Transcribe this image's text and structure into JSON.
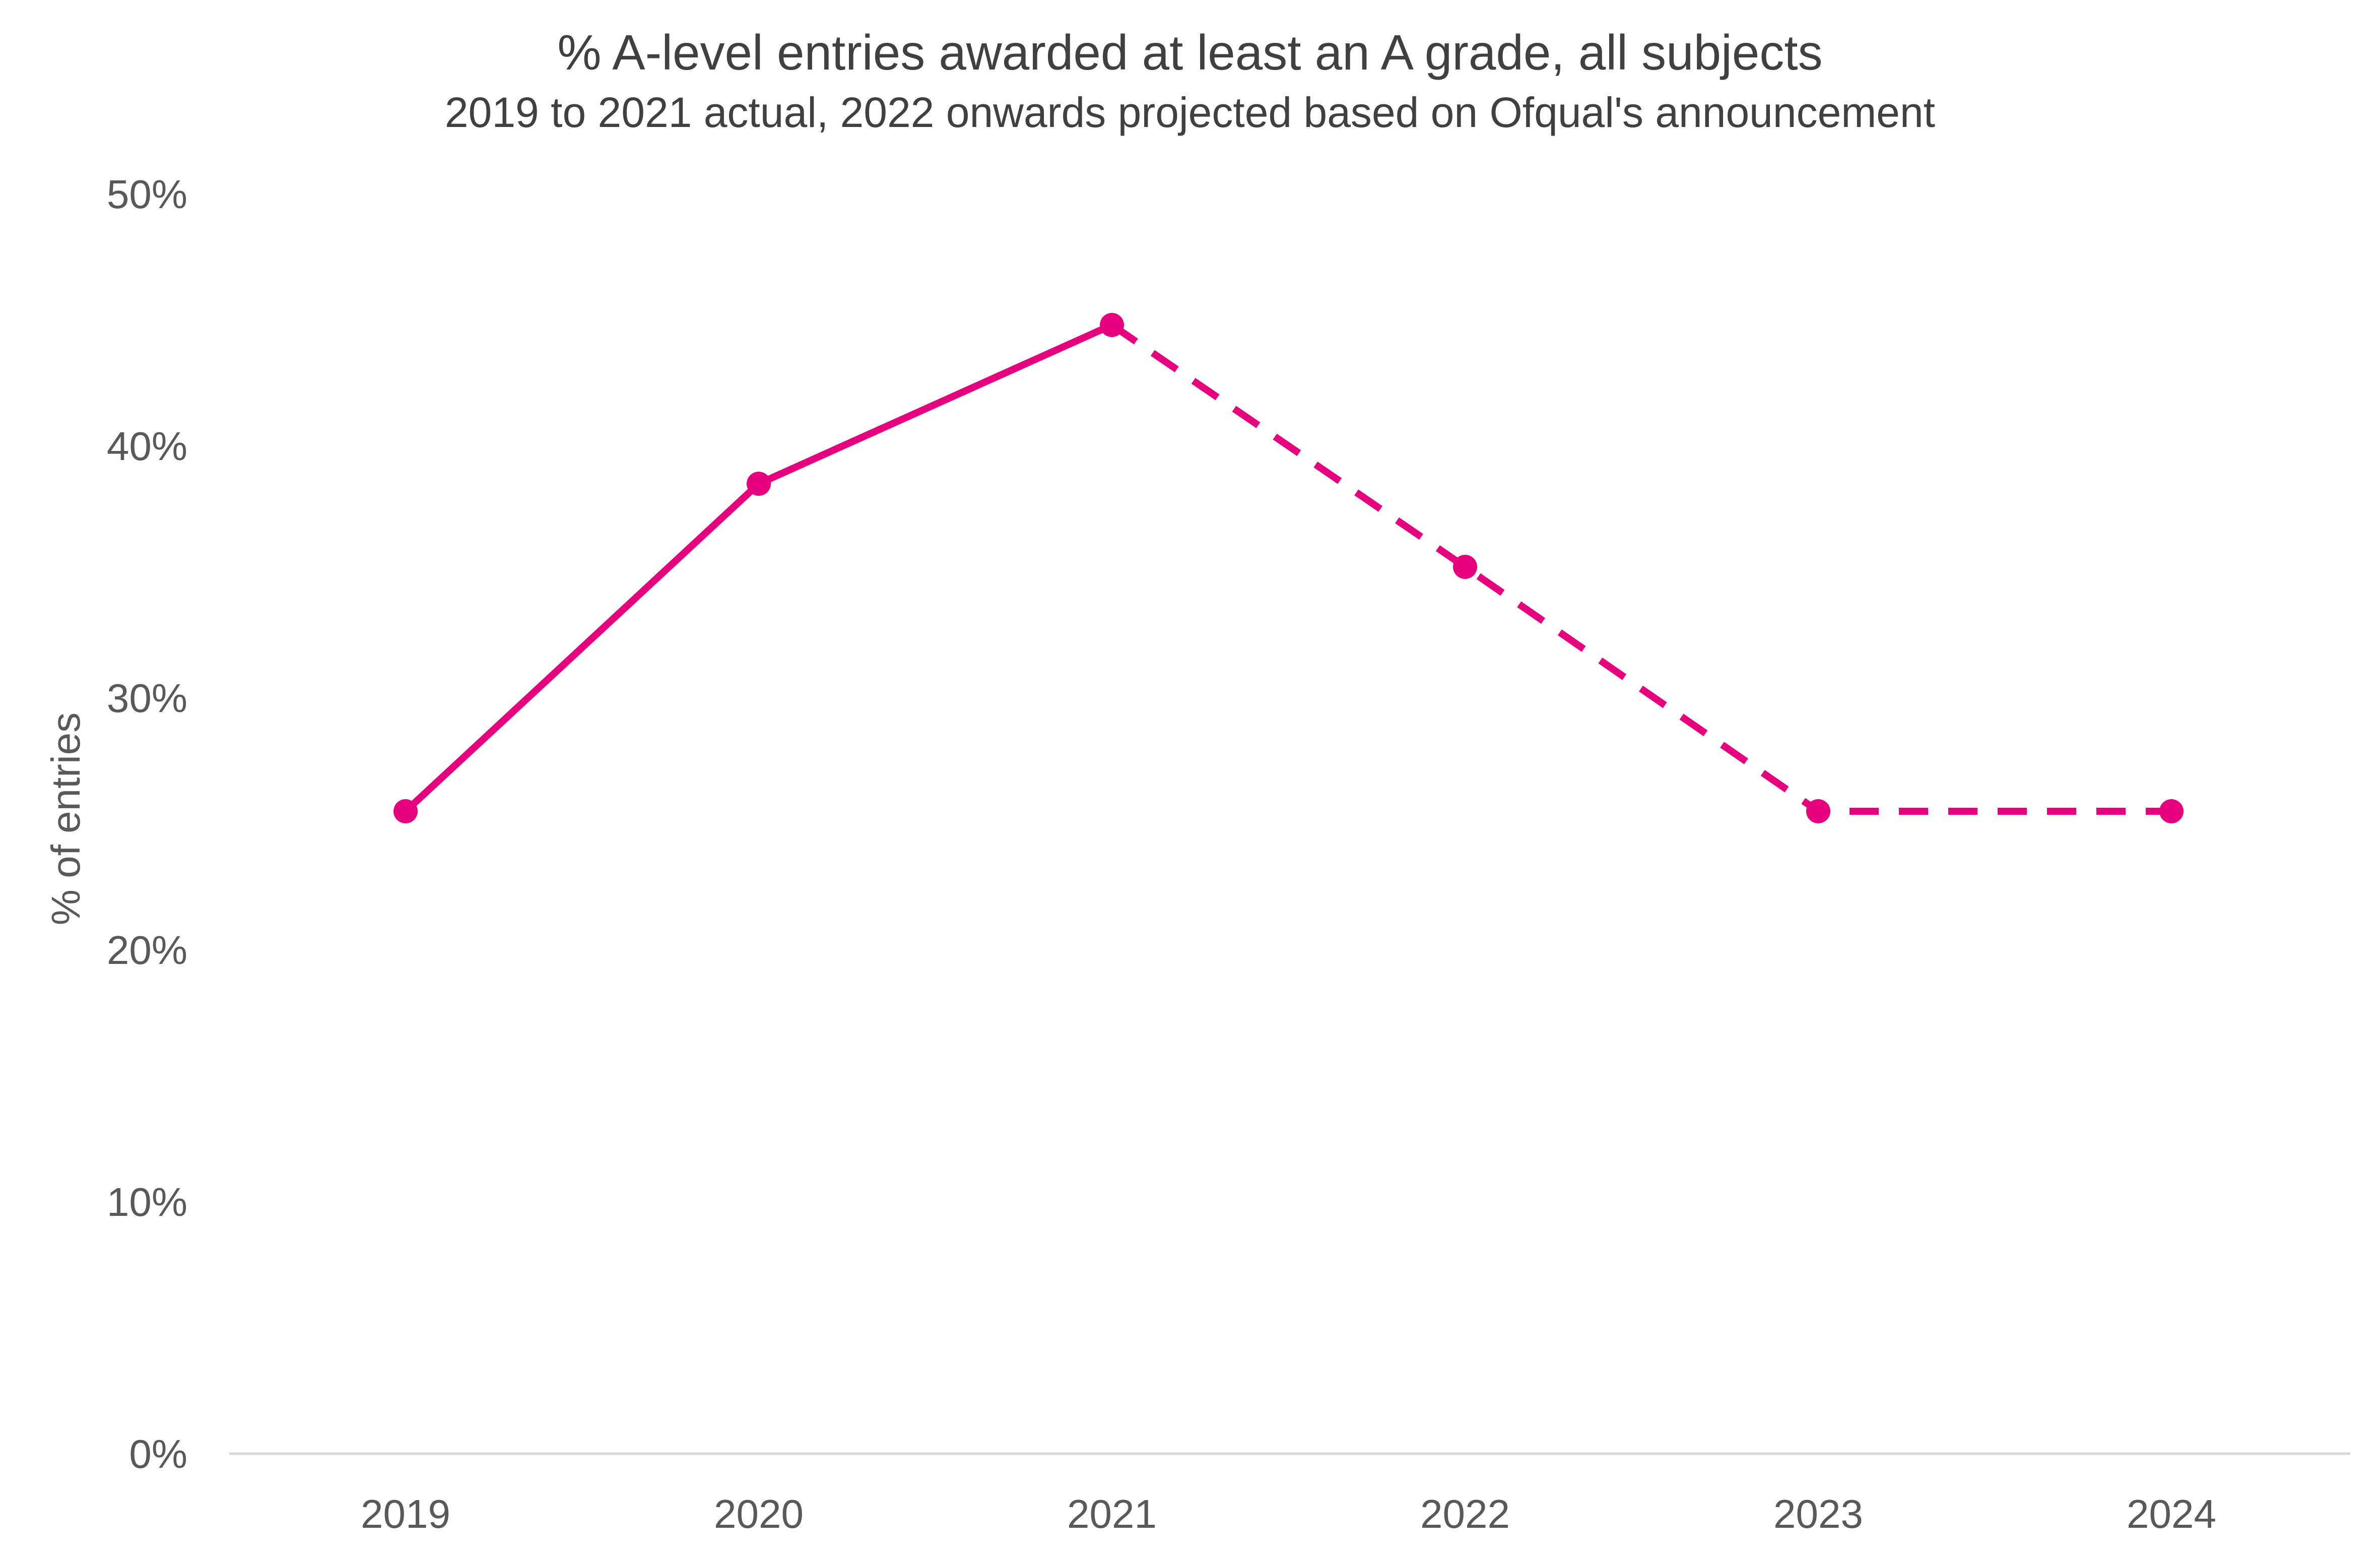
{
  "colors": {
    "series": "#e6007e",
    "axis": "#d9d9d9",
    "title": "#404040",
    "ticks": "#595959"
  },
  "chart_data": {
    "type": "line",
    "title": "% A-level entries awarded at least an A grade, all subjects",
    "subtitle": "2019 to 2021 actual, 2022 onwards projected based on Ofqual's announcement",
    "xlabel": "",
    "ylabel": "% of entries",
    "ylim": [
      0,
      50
    ],
    "yticks": [
      0,
      10,
      20,
      30,
      40,
      50
    ],
    "ytick_labels": [
      "0%",
      "10%",
      "20%",
      "30%",
      "40%",
      "50%"
    ],
    "categories": [
      "2019",
      "2020",
      "2021",
      "2022",
      "2023",
      "2024"
    ],
    "grid": false,
    "legend": "none",
    "series": [
      {
        "values": [
          25.5,
          38.5,
          44.8,
          35.2,
          25.5,
          25.5
        ],
        "actual_through": "2021",
        "projected_from": "2021",
        "markers": true
      }
    ]
  }
}
